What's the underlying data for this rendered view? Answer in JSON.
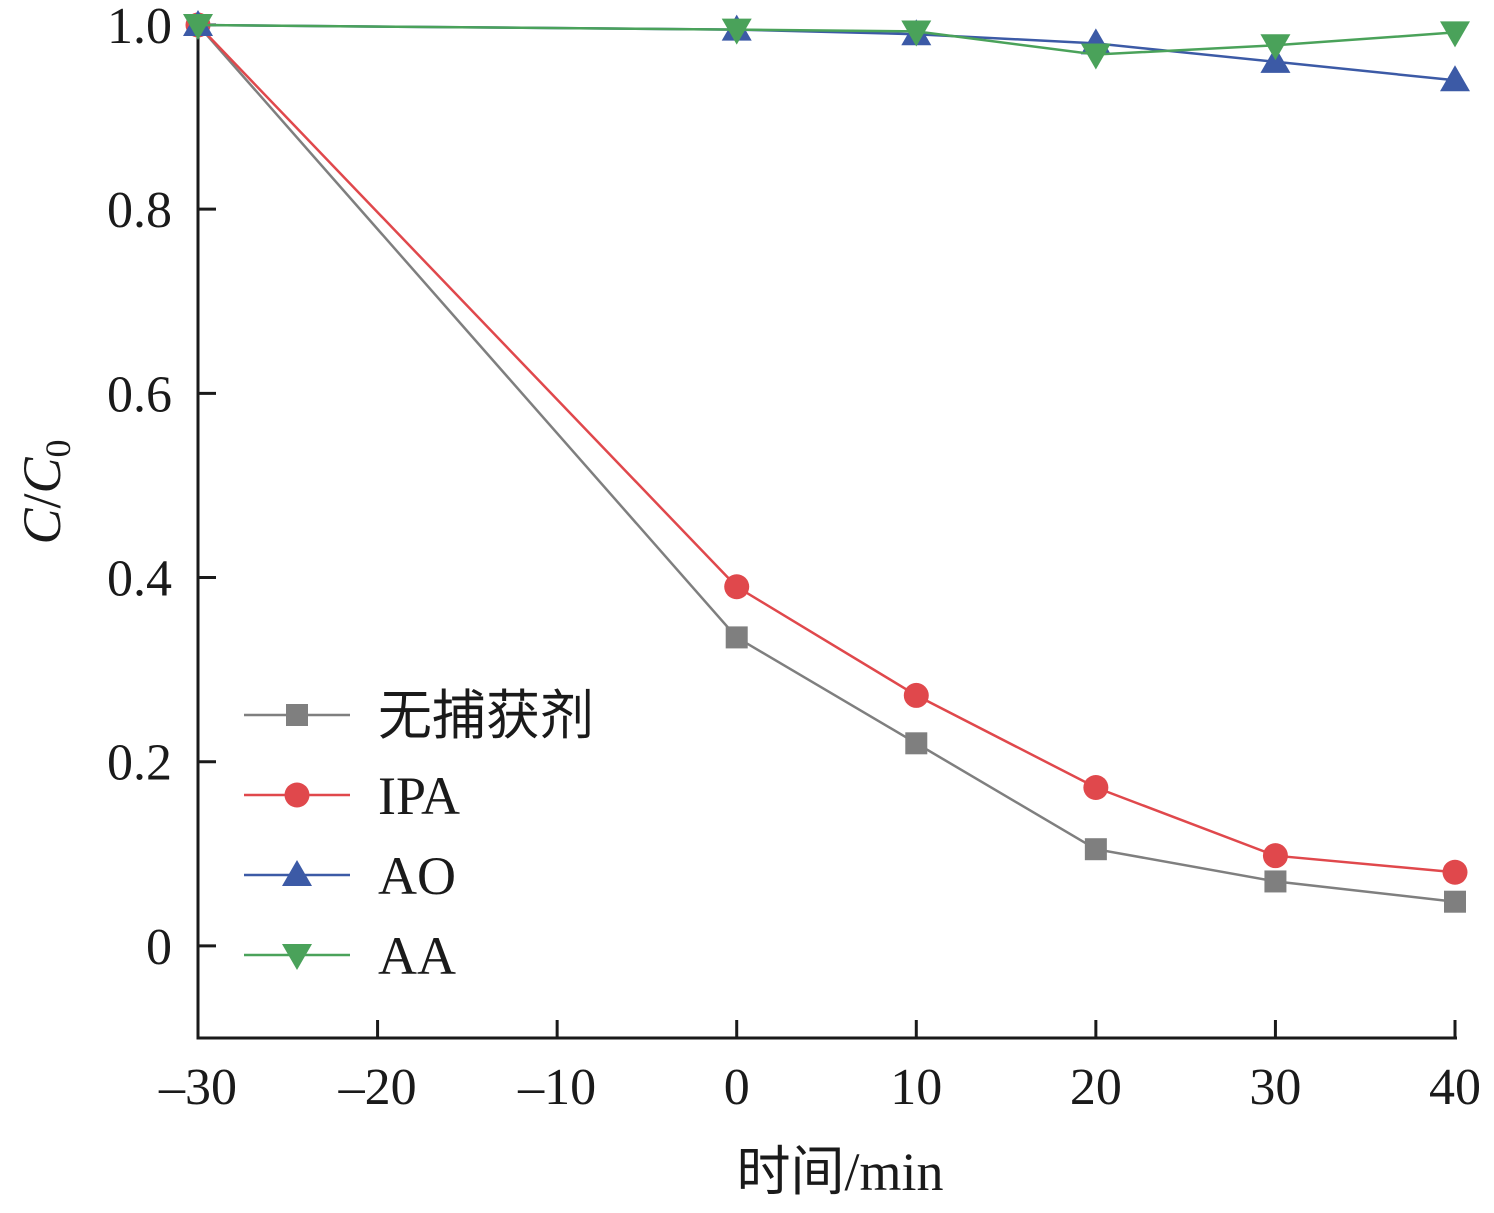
{
  "chart_data": {
    "type": "line",
    "title": "",
    "xlabel": "时间/min",
    "ylabel_main": "C",
    "ylabel_slash": "/",
    "ylabel_sub_base": "C",
    "ylabel_subscript": "0",
    "xlim": [
      -30,
      40
    ],
    "ylim": [
      -0.1,
      1.0
    ],
    "xticks": [
      -30,
      -20,
      -10,
      0,
      10,
      20,
      30,
      40
    ],
    "xtick_labels": [
      "–30",
      "–20",
      "–10",
      "0",
      "10",
      "20",
      "30",
      "40"
    ],
    "yticks": [
      0,
      0.2,
      0.4,
      0.6,
      0.8,
      1.0
    ],
    "ytick_labels": [
      "0",
      "0.2",
      "0.4",
      "0.6",
      "0.8",
      "1.0"
    ],
    "grid": false,
    "legend_position": "bottom-left",
    "x": [
      -30,
      0,
      10,
      20,
      30,
      40
    ],
    "series": [
      {
        "name": "无捕获剂",
        "marker": "square",
        "color": "#7f7f7f",
        "values": [
          1.0,
          0.335,
          0.22,
          0.105,
          0.07,
          0.048
        ]
      },
      {
        "name": "IPA",
        "marker": "circle",
        "color": "#e0484c",
        "values": [
          1.0,
          0.39,
          0.272,
          0.172,
          0.098,
          0.08
        ]
      },
      {
        "name": "AO",
        "marker": "triangle-up",
        "color": "#3c5aa6",
        "values": [
          1.0,
          0.995,
          0.99,
          0.98,
          0.96,
          0.94
        ]
      },
      {
        "name": "AA",
        "marker": "triangle-down",
        "color": "#4aa25a",
        "values": [
          1.0,
          0.995,
          0.993,
          0.968,
          0.978,
          0.992
        ]
      }
    ]
  }
}
